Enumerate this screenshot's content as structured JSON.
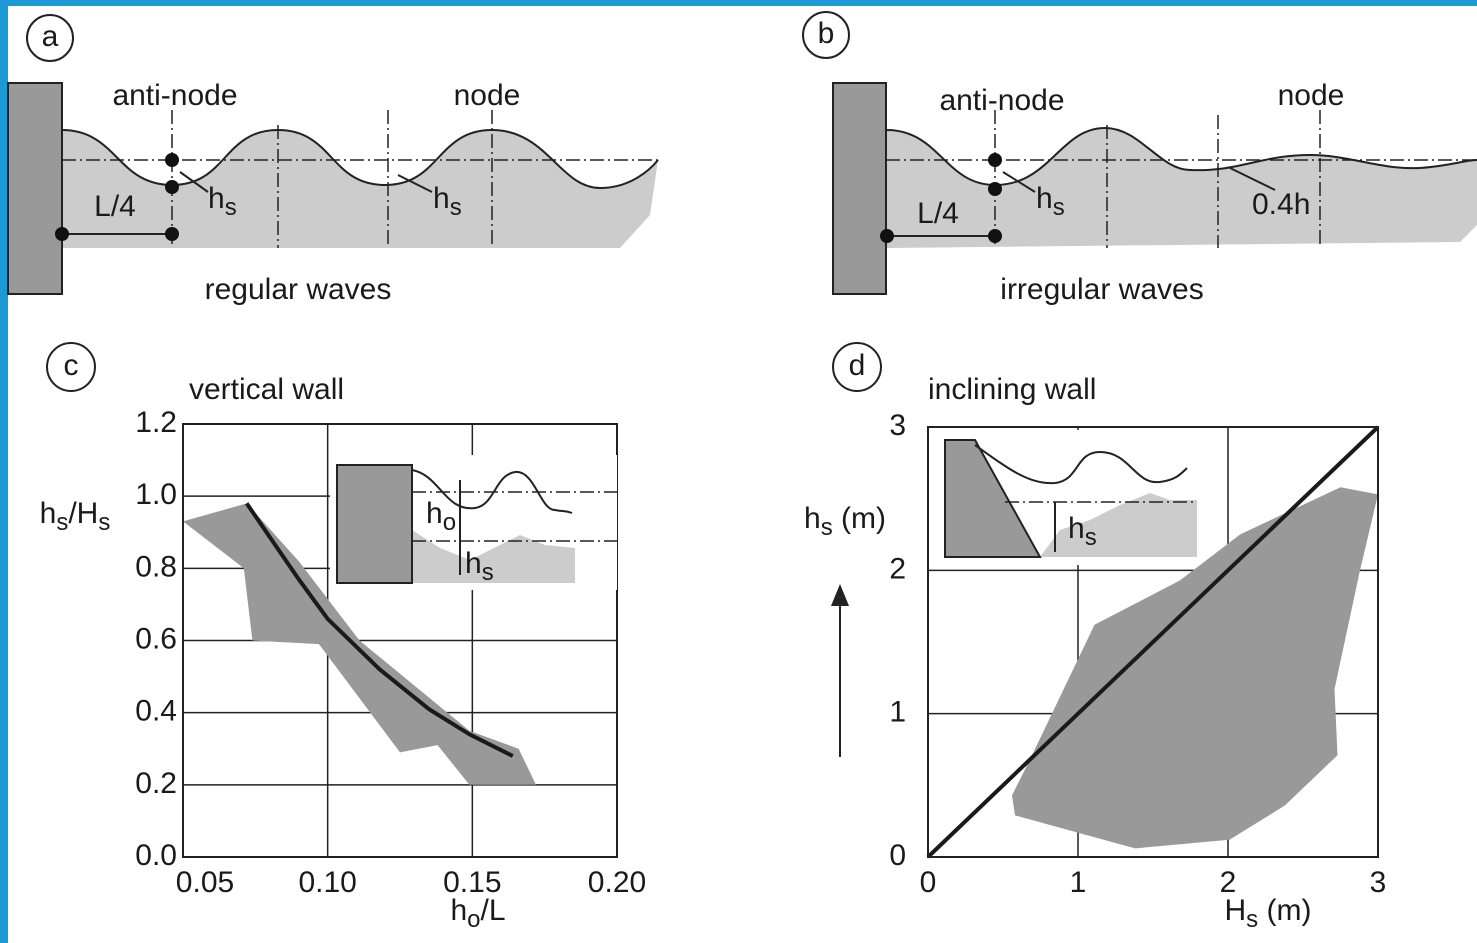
{
  "panel_a": {
    "label": "a",
    "left_label": "anti-node",
    "right_label": "node",
    "distance": "L/4",
    "height_left": [
      "h",
      "s"
    ],
    "height_right": [
      "h",
      "s"
    ],
    "caption": "regular waves"
  },
  "panel_b": {
    "label": "b",
    "left_label": "anti-node",
    "right_label": "node",
    "distance": "L/4",
    "height_left": [
      "h",
      "s"
    ],
    "height_right": "0.4h",
    "caption": "irregular waves"
  },
  "chart_data": [
    {
      "type": "line",
      "label": "c",
      "title": "vertical wall",
      "xlabel": [
        "h",
        "o",
        "/L"
      ],
      "ylabel": [
        "h",
        "s",
        "/H",
        "s"
      ],
      "inset_labels": [
        [
          "h",
          "o"
        ],
        [
          "h",
          "s"
        ]
      ],
      "xlim": [
        0.05,
        0.2
      ],
      "ylim": [
        0,
        1.2
      ],
      "xticks": [
        0.05,
        {
          "value": 0.1,
          "label": "0.10"
        },
        0.15,
        {
          "value": 0.2,
          "label": "0.20"
        }
      ],
      "yticks": [
        {
          "value": 0,
          "label": "0.0"
        },
        0.2,
        0.4,
        0.6,
        0.8,
        {
          "value": 1,
          "label": "1.0"
        },
        1.2
      ],
      "grid": true,
      "series": [
        {
          "color": "#999999",
          "fill": true,
          "x": [
            0.05,
            0.072,
            0.09,
            0.111,
            0.149,
            0.166,
            0.172,
            0.149,
            0.138,
            0.125,
            0.097,
            0.074,
            0.071
          ],
          "values": [
            0.93,
            0.98,
            0.82,
            0.6,
            0.35,
            0.3,
            0.2,
            0.2,
            0.31,
            0.29,
            0.59,
            0.6,
            0.8
          ]
        },
        {
          "color": "#1a1a1a",
          "fill": false,
          "x": [
            0.072,
            0.09,
            0.1,
            0.118,
            0.135,
            0.149,
            0.164
          ],
          "values": [
            0.98,
            0.77,
            0.66,
            0.52,
            0.41,
            0.34,
            0.28
          ]
        }
      ]
    },
    {
      "type": "line",
      "label": "d",
      "title": "inclining wall",
      "xlabel": [
        "H",
        "s",
        " (m)"
      ],
      "ylabel": [
        "h",
        "s",
        " (m)"
      ],
      "inset_labels": [
        [
          "h",
          "s"
        ]
      ],
      "xlim": [
        0,
        3
      ],
      "ylim": [
        0,
        3
      ],
      "xticks": [
        0,
        1,
        2,
        3
      ],
      "yticks": [
        0,
        1,
        2,
        3
      ],
      "grid": true,
      "series": [
        {
          "color": "#999999",
          "fill": true,
          "x": [
            0.56,
            0.68,
            1.11,
            1.68,
            2.08,
            2.75,
            3.0,
            2.88,
            2.71,
            2.73,
            2.38,
            2.01,
            1.38,
            0.58
          ],
          "values": [
            0.43,
            0.68,
            1.62,
            1.93,
            2.25,
            2.58,
            2.53,
            2.0,
            1.17,
            0.71,
            0.36,
            0.12,
            0.06,
            0.29
          ]
        },
        {
          "color": "#1a1a1a",
          "fill": false,
          "x": [
            0,
            3
          ],
          "values": [
            0,
            3
          ]
        }
      ]
    }
  ]
}
